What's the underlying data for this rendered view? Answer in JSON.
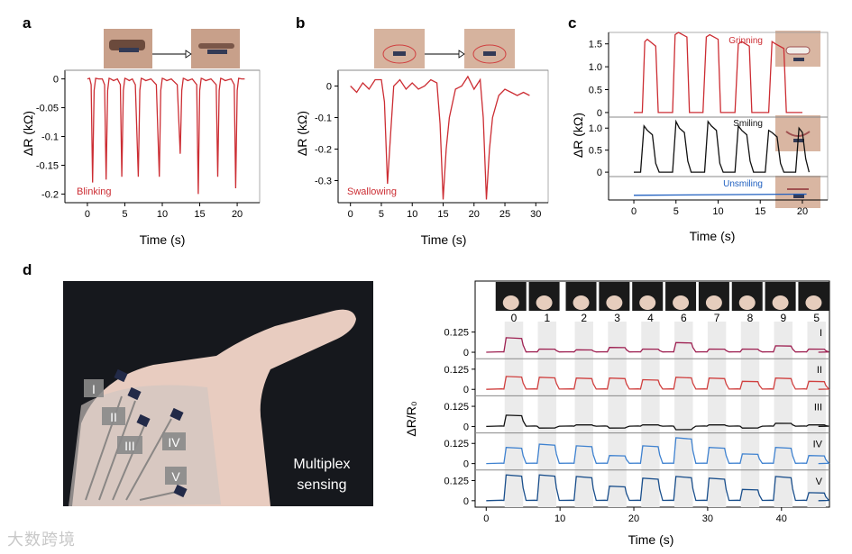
{
  "watermark": "大数跨境",
  "panels": {
    "a": {
      "letter": "a",
      "ylabel": "ΔR (kΩ)",
      "xlabel": "Time (s)",
      "annotation": "Blinking"
    },
    "b": {
      "letter": "b",
      "ylabel": "ΔR (kΩ)",
      "xlabel": "Time (s)",
      "annotation": "Swallowing"
    },
    "c": {
      "letter": "c",
      "ylabel": "ΔR (kΩ)",
      "xlabel": "Time (s)",
      "labels": [
        "Grinning",
        "Smiling",
        "Unsmiling"
      ]
    },
    "d": {
      "letter": "d",
      "ylabel": "ΔR/R₀",
      "xlabel": "Time (s)",
      "photo_labels": [
        "I",
        "II",
        "III",
        "IV",
        "V"
      ],
      "photo_caption_1": "Multiplex",
      "photo_caption_2": "sensing"
    }
  },
  "chart_data": [
    {
      "id": "a",
      "type": "line",
      "color": "#cc2d33",
      "xlim": [
        -3,
        23
      ],
      "ylim": [
        -0.215,
        0.015
      ],
      "xticks": [
        0,
        5,
        10,
        15,
        20
      ],
      "yticks": [
        0,
        -0.05,
        -0.1,
        -0.15,
        -0.2
      ],
      "ytick_labels": [
        "0",
        "-0.05",
        "-0.1",
        "-0.15",
        "-0.2"
      ],
      "x": [
        0,
        0.3,
        0.5,
        0.7,
        0.9,
        1.1,
        1.5,
        2.0,
        2.3,
        2.5,
        2.7,
        2.9,
        3.1,
        3.5,
        4.0,
        4.4,
        4.6,
        4.8,
        5.0,
        5.2,
        5.6,
        6.0,
        6.4,
        6.8,
        7.0,
        7.2,
        7.4,
        7.8,
        8.5,
        9.2,
        9.6,
        9.8,
        10.0,
        10.2,
        10.6,
        11.2,
        12.0,
        12.4,
        12.6,
        12.8,
        13.0,
        13.4,
        14.0,
        14.6,
        14.8,
        15.0,
        15.2,
        15.4,
        15.8,
        16.5,
        17.2,
        17.4,
        17.6,
        17.8,
        18.0,
        18.4,
        19.2,
        19.6,
        19.8,
        20.0,
        20.2,
        20.6,
        21.0
      ],
      "y": [
        0,
        0.001,
        -0.01,
        -0.18,
        -0.02,
        0.001,
        0,
        0,
        -0.01,
        -0.175,
        -0.02,
        0.001,
        0,
        -0.003,
        0,
        -0.01,
        -0.17,
        -0.02,
        0.001,
        0,
        -0.003,
        0,
        -0.01,
        -0.17,
        -0.02,
        0.001,
        0,
        -0.003,
        0,
        -0.01,
        -0.17,
        -0.02,
        0.001,
        0,
        -0.003,
        0,
        -0.01,
        -0.13,
        -0.02,
        0.001,
        0,
        -0.003,
        0,
        -0.01,
        -0.2,
        -0.02,
        0.001,
        0,
        -0.003,
        0,
        -0.01,
        -0.17,
        -0.02,
        0.001,
        0,
        -0.003,
        0,
        -0.01,
        -0.19,
        -0.02,
        0.001,
        0,
        0
      ]
    },
    {
      "id": "b",
      "type": "line",
      "color": "#cc2d33",
      "xlim": [
        -2,
        32
      ],
      "ylim": [
        -0.37,
        0.05
      ],
      "xticks": [
        0,
        5,
        10,
        15,
        20,
        25,
        30
      ],
      "yticks": [
        0,
        -0.1,
        -0.2,
        -0.3
      ],
      "ytick_labels": [
        "0",
        "-0.1",
        "-0.2",
        "-0.3"
      ],
      "x": [
        0,
        1,
        2,
        3,
        4,
        5,
        5.5,
        6.0,
        6.5,
        7.0,
        8.0,
        9,
        10,
        11,
        12,
        13,
        14,
        14.5,
        15.0,
        15.5,
        16.0,
        17.0,
        18,
        19,
        20,
        21,
        21.5,
        22.0,
        22.5,
        23.0,
        24.0,
        25,
        26,
        27,
        28,
        29
      ],
      "y": [
        0,
        -0.02,
        0.01,
        -0.01,
        0.02,
        0.02,
        -0.05,
        -0.31,
        -0.15,
        0,
        0.02,
        -0.01,
        0.01,
        -0.01,
        0,
        0.02,
        0.01,
        -0.12,
        -0.36,
        -0.2,
        -0.1,
        -0.01,
        0,
        0.03,
        -0.01,
        0.02,
        -0.1,
        -0.36,
        -0.2,
        -0.1,
        -0.03,
        -0.01,
        -0.02,
        -0.03,
        -0.02,
        -0.03
      ]
    },
    {
      "id": "c",
      "type": "line",
      "xlim": [
        -3,
        23
      ],
      "xticks": [
        0,
        5,
        10,
        15,
        20
      ],
      "sub": [
        {
          "name": "Grinning",
          "color": "#cc2d33",
          "ylim": [
            -0.1,
            1.75
          ],
          "yticks": [
            0,
            0.5,
            1,
            1.5
          ],
          "ytick_labels": [
            "0",
            "0.5",
            "1.0",
            "1.5"
          ],
          "x": [
            0,
            1.0,
            1.3,
            1.6,
            2.6,
            2.9,
            3.2,
            4.6,
            4.9,
            5.3,
            6.3,
            6.6,
            6.9,
            8.2,
            8.6,
            9.0,
            10.0,
            10.3,
            10.6,
            12.0,
            12.4,
            12.8,
            13.7,
            14.0,
            14.3,
            16.0,
            16.4,
            16.8,
            17.8,
            18.1,
            18.4,
            20.0
          ],
          "y": [
            0,
            0,
            1.55,
            1.6,
            1.45,
            0,
            0,
            0,
            1.7,
            1.75,
            1.65,
            0,
            0,
            0,
            1.65,
            1.7,
            1.6,
            0,
            0,
            0,
            1.5,
            1.55,
            1.45,
            0,
            0,
            0,
            1.55,
            1.5,
            1.4,
            0,
            0,
            0
          ]
        },
        {
          "name": "Smiling",
          "color": "#111111",
          "ylim": [
            -0.1,
            1.25
          ],
          "yticks": [
            0,
            0.5,
            1
          ],
          "ytick_labels": [
            "0",
            "0.5",
            "1.0"
          ],
          "x": [
            0,
            0.8,
            1.2,
            1.6,
            2.2,
            2.6,
            3.0,
            4.6,
            5.0,
            5.4,
            6.0,
            6.4,
            6.8,
            8.4,
            8.8,
            9.2,
            9.8,
            10.2,
            10.6,
            12.0,
            12.4,
            12.8,
            13.4,
            13.8,
            14.2,
            15.6,
            16.0,
            16.4,
            17.0,
            17.4,
            17.8,
            19.2,
            19.6,
            20.0,
            20.4,
            20.8
          ],
          "y": [
            0,
            0,
            1.05,
            0.95,
            0.85,
            0.2,
            0,
            0,
            1.15,
            1.0,
            0.9,
            0.25,
            0,
            0,
            1.15,
            1.05,
            0.95,
            0.2,
            0,
            0,
            1.05,
            0.95,
            0.85,
            0.25,
            0,
            0,
            0.95,
            0.9,
            0.8,
            0.2,
            0,
            0,
            1.0,
            0.9,
            0.3,
            0
          ]
        },
        {
          "name": "Unsmiling",
          "color": "#2060c0",
          "ylim": [
            -0.1,
            0.5
          ],
          "yticks": [],
          "ytick_labels": [],
          "x": [
            0,
            20.5
          ],
          "y": [
            0.02,
            0.05
          ]
        }
      ]
    },
    {
      "id": "d",
      "type": "line",
      "xlim": [
        -1.5,
        46.5
      ],
      "xticks": [
        0,
        10,
        20,
        30,
        40
      ],
      "gesture_labels": [
        "0",
        "1",
        "2",
        "3",
        "4",
        "6",
        "7",
        "8",
        "9",
        "5"
      ],
      "shade_start": [
        2.5,
        7.0,
        12.0,
        16.5,
        21.0,
        25.5,
        30.0,
        34.5,
        39.0,
        43.5
      ],
      "shade_width": 2.5,
      "channels": [
        {
          "name": "I",
          "color": "#9e2152",
          "ytick_labels": [
            "0.125",
            "0"
          ],
          "yticks": [
            0.125,
            0
          ],
          "ylim": [
            -0.04,
            0.19
          ],
          "pattern": [
            0.09,
            0.02,
            0.015,
            0.03,
            0.02,
            0.06,
            0.02,
            0.02,
            0.04,
            0.02
          ]
        },
        {
          "name": "II",
          "color": "#d0403f",
          "ytick_labels": [
            "0.125",
            "0"
          ],
          "yticks": [
            0.125,
            0
          ],
          "ylim": [
            -0.04,
            0.19
          ],
          "pattern": [
            0.08,
            0.075,
            0.07,
            0.07,
            0.06,
            0.075,
            0.07,
            0.05,
            0.07,
            0.05
          ]
        },
        {
          "name": "III",
          "color": "#111111",
          "ytick_labels": [
            "0.125",
            "0"
          ],
          "yticks": [
            0.125,
            0
          ],
          "ylim": [
            -0.04,
            0.19
          ],
          "pattern": [
            0.07,
            -0.01,
            0.01,
            -0.01,
            0.01,
            -0.02,
            0.01,
            -0.01,
            0.02,
            0.01
          ]
        },
        {
          "name": "IV",
          "color": "#3f82d0",
          "ytick_labels": [
            "0.125",
            "0"
          ],
          "yticks": [
            0.125,
            0
          ],
          "ylim": [
            -0.04,
            0.19
          ],
          "pattern": [
            0.1,
            0.12,
            0.11,
            0.05,
            0.11,
            0.16,
            0.1,
            0.06,
            0.1,
            0.05
          ]
        },
        {
          "name": "V",
          "color": "#1a4f8c",
          "ytick_labels": [
            "0.125",
            "0"
          ],
          "yticks": [
            0.125,
            0
          ],
          "ylim": [
            -0.04,
            0.19
          ],
          "pattern": [
            0.16,
            0.16,
            0.15,
            0.09,
            0.14,
            0.15,
            0.14,
            0.07,
            0.15,
            0.05
          ]
        }
      ]
    }
  ]
}
